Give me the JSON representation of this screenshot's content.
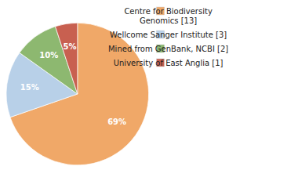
{
  "chart_data": {
    "type": "pie",
    "categories": [
      "Centre for Biodiversity\nGenomics [13]",
      "Wellcome Sanger Institute [3]",
      "Mined from GenBank, NCBI [2]",
      "University of East Anglia [1]"
    ],
    "values": [
      69,
      15,
      10,
      5
    ],
    "value_labels": [
      "69%",
      "15%",
      "10%",
      "5%"
    ],
    "colors": [
      "#F0A868",
      "#B8D0E8",
      "#8DB870",
      "#C86050"
    ],
    "data_labels": true,
    "legend": "right"
  }
}
